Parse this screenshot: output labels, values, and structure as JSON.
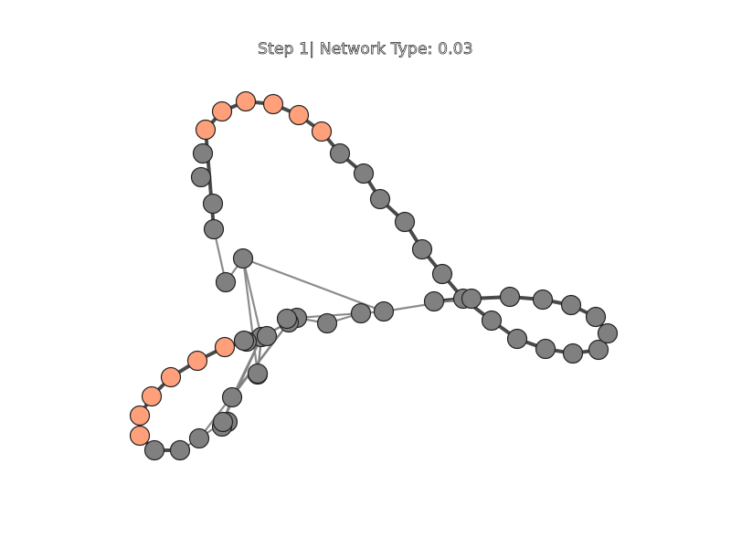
{
  "title": "Step 1| Network Type: 0.03",
  "colors": {
    "default_node": "#808080",
    "highlight_node": "#FFA07A",
    "edge_heavy": "#333333",
    "edge_light": "#808080",
    "background": "#ffffff"
  },
  "nodes": [
    {
      "id": "n0",
      "state": "highlight"
    },
    {
      "id": "n1",
      "state": "highlight"
    },
    {
      "id": "n2",
      "state": "highlight"
    },
    {
      "id": "n3",
      "state": "highlight"
    },
    {
      "id": "n4",
      "state": "highlight"
    },
    {
      "id": "n5",
      "state": "highlight"
    },
    {
      "id": "n6",
      "state": "default"
    },
    {
      "id": "n7",
      "state": "default"
    },
    {
      "id": "n8",
      "state": "default"
    },
    {
      "id": "n9",
      "state": "default"
    },
    {
      "id": "n10",
      "state": "default"
    },
    {
      "id": "n11",
      "state": "default"
    },
    {
      "id": "n12",
      "state": "default"
    },
    {
      "id": "n13",
      "state": "default"
    },
    {
      "id": "n14",
      "state": "default"
    },
    {
      "id": "n15",
      "state": "default"
    },
    {
      "id": "n16",
      "state": "default"
    },
    {
      "id": "n17",
      "state": "default"
    },
    {
      "id": "n18",
      "state": "default"
    },
    {
      "id": "n19",
      "state": "default"
    },
    {
      "id": "n20",
      "state": "default"
    },
    {
      "id": "n21",
      "state": "default"
    },
    {
      "id": "n22",
      "state": "default"
    },
    {
      "id": "n23",
      "state": "default"
    },
    {
      "id": "n24",
      "state": "default"
    },
    {
      "id": "n25",
      "state": "default"
    },
    {
      "id": "n26",
      "state": "default"
    },
    {
      "id": "n27",
      "state": "default"
    },
    {
      "id": "n28",
      "state": "default"
    },
    {
      "id": "n29",
      "state": "default"
    },
    {
      "id": "n30",
      "state": "default"
    },
    {
      "id": "n31",
      "state": "default"
    },
    {
      "id": "n32",
      "state": "default"
    },
    {
      "id": "n33",
      "state": "default"
    },
    {
      "id": "n34",
      "state": "default"
    },
    {
      "id": "n35",
      "state": "default"
    },
    {
      "id": "n36",
      "state": "default"
    },
    {
      "id": "n37",
      "state": "default"
    },
    {
      "id": "n38",
      "state": "default"
    },
    {
      "id": "n39",
      "state": "default"
    },
    {
      "id": "n40",
      "state": "default"
    },
    {
      "id": "n41",
      "state": "highlight"
    },
    {
      "id": "n42",
      "state": "highlight"
    },
    {
      "id": "n43",
      "state": "highlight"
    },
    {
      "id": "n44",
      "state": "highlight"
    },
    {
      "id": "n45",
      "state": "highlight"
    },
    {
      "id": "n46",
      "state": "highlight"
    },
    {
      "id": "n47",
      "state": "default"
    },
    {
      "id": "n48",
      "state": "default"
    },
    {
      "id": "n49",
      "state": "default"
    },
    {
      "id": "n50",
      "state": "default"
    },
    {
      "id": "n51",
      "state": "default"
    },
    {
      "id": "n52",
      "state": "default"
    },
    {
      "id": "n53",
      "state": "default"
    },
    {
      "id": "n54",
      "state": "default"
    },
    {
      "id": "n55",
      "state": "default"
    }
  ],
  "edges": [
    [
      "n0",
      "n1",
      "heavy"
    ],
    [
      "n1",
      "n2",
      "heavy"
    ],
    [
      "n2",
      "n3",
      "heavy"
    ],
    [
      "n3",
      "n4",
      "heavy"
    ],
    [
      "n4",
      "n5",
      "heavy"
    ],
    [
      "n5",
      "n6",
      "heavy"
    ],
    [
      "n6",
      "n7",
      "heavy"
    ],
    [
      "n7",
      "n8",
      "heavy"
    ],
    [
      "n8",
      "n9",
      "heavy"
    ],
    [
      "n9",
      "n10",
      "heavy"
    ],
    [
      "n10",
      "n11",
      "heavy"
    ],
    [
      "n11",
      "n12",
      "heavy"
    ],
    [
      "n12",
      "n13",
      "heavy"
    ],
    [
      "n13",
      "n14",
      "heavy"
    ],
    [
      "n14",
      "n15",
      "heavy"
    ],
    [
      "n15",
      "n16",
      "heavy"
    ],
    [
      "n16",
      "n17",
      "heavy"
    ],
    [
      "n17",
      "n18",
      "heavy"
    ],
    [
      "n18",
      "n19",
      "heavy"
    ],
    [
      "n19",
      "n20",
      "heavy"
    ],
    [
      "n20",
      "n21",
      "heavy"
    ],
    [
      "n21",
      "n22",
      "heavy"
    ],
    [
      "n22",
      "n23",
      "heavy"
    ],
    [
      "n23",
      "n24",
      "heavy"
    ],
    [
      "n24",
      "n12",
      "heavy"
    ],
    [
      "n12",
      "n25",
      "light"
    ],
    [
      "n25",
      "n26",
      "light"
    ],
    [
      "n26",
      "n27",
      "light"
    ],
    [
      "n27",
      "n28",
      "light"
    ],
    [
      "n28",
      "n29",
      "light"
    ],
    [
      "n29",
      "n30",
      "light"
    ],
    [
      "n30",
      "n31",
      "heavy"
    ],
    [
      "n31",
      "n41",
      "heavy"
    ],
    [
      "n41",
      "n42",
      "heavy"
    ],
    [
      "n42",
      "n43",
      "heavy"
    ],
    [
      "n43",
      "n44",
      "heavy"
    ],
    [
      "n44",
      "n45",
      "heavy"
    ],
    [
      "n45",
      "n46",
      "heavy"
    ],
    [
      "n46",
      "n47",
      "heavy"
    ],
    [
      "n47",
      "n48",
      "heavy"
    ],
    [
      "n48",
      "n49",
      "light"
    ],
    [
      "n49",
      "n50",
      "light"
    ],
    [
      "n50",
      "n51",
      "light"
    ],
    [
      "n51",
      "n30",
      "light"
    ],
    [
      "n30",
      "n52",
      "light"
    ],
    [
      "n52",
      "n53",
      "light"
    ],
    [
      "n53",
      "n54",
      "light"
    ],
    [
      "n54",
      "n55",
      "light"
    ],
    [
      "n55",
      "n0",
      "heavy"
    ],
    [
      "n53",
      "n25",
      "light"
    ],
    [
      "n52",
      "n30",
      "light"
    ],
    [
      "n29",
      "n51",
      "light"
    ],
    [
      "n28",
      "n30",
      "light"
    ],
    [
      "n50",
      "n30",
      "light"
    ],
    [
      "n49",
      "n29",
      "light"
    ],
    [
      "n26",
      "n28",
      "light"
    ],
    [
      "n53",
      "n30",
      "light"
    ]
  ]
}
